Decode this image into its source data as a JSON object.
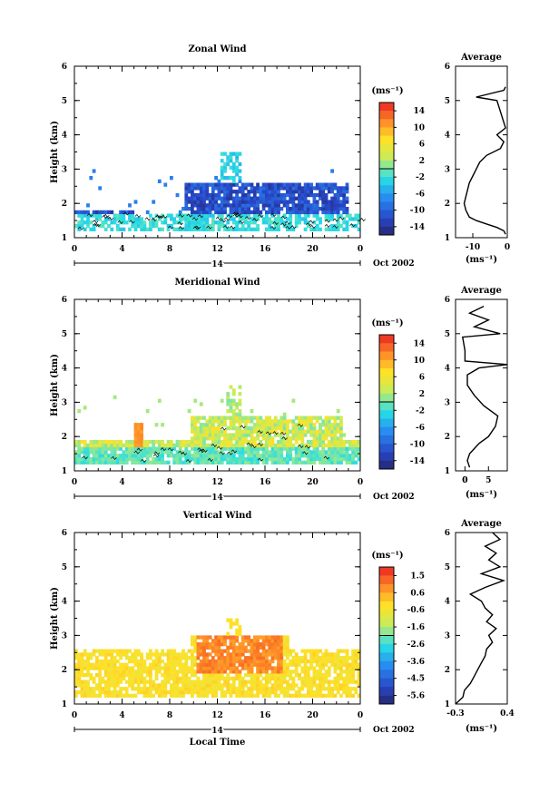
{
  "chart_data": [
    {
      "type": "heatmap",
      "title": "Zonal Wind",
      "ylabel": "Height (km)",
      "xlabel": "",
      "x_ticks": [
        "0",
        "4",
        "8",
        "12",
        "16",
        "20",
        "0"
      ],
      "y_ticks": [
        "1",
        "2",
        "3",
        "4",
        "5",
        "6"
      ],
      "xlim": [
        0,
        24
      ],
      "ylim": [
        1,
        6
      ],
      "date_day": "14",
      "date_month_year": "Oct 2002",
      "colorbar": {
        "unit": "(ms⁻¹)",
        "labels": [
          "14",
          "10",
          "6",
          "2",
          "-2",
          "-6",
          "-10",
          "-14"
        ],
        "range": [
          -16,
          16
        ]
      },
      "field_summary": "echoes between 1.2 and 2.6 km, strongest easterly (~-12 ms-1) near 2-2.4 km from 10-22 h",
      "average_profile": {
        "title": "Average",
        "unit": "(ms⁻¹)",
        "x_ticks": [
          "-10",
          "0"
        ],
        "xlim": [
          -15,
          0
        ],
        "height_km": [
          1.1,
          1.2,
          1.3,
          1.4,
          1.5,
          1.6,
          1.8,
          2.0,
          2.2,
          2.4,
          2.6,
          2.8,
          3.0,
          3.2,
          3.4,
          3.6,
          3.8,
          4.0,
          4.2,
          5.0,
          5.1,
          5.3,
          5.4
        ],
        "values": [
          -0.5,
          -1,
          -3,
          -6,
          -9,
          -11,
          -12,
          -12.5,
          -12,
          -11.5,
          -11,
          -10,
          -9,
          -8,
          -6,
          -2,
          -1,
          -3,
          -0.5,
          -3,
          -9,
          -1,
          -0.5
        ]
      }
    },
    {
      "type": "heatmap",
      "title": "Meridional Wind",
      "ylabel": "Height (km)",
      "xlabel": "",
      "x_ticks": [
        "0",
        "4",
        "8",
        "12",
        "16",
        "20",
        "0"
      ],
      "y_ticks": [
        "1",
        "2",
        "3",
        "4",
        "5",
        "6"
      ],
      "xlim": [
        0,
        24
      ],
      "ylim": [
        1,
        6
      ],
      "date_day": "14",
      "date_month_year": "Oct 2002",
      "colorbar": {
        "unit": "(ms⁻¹)",
        "labels": [
          "14",
          "10",
          "6",
          "2",
          "-2",
          "-6",
          "-10",
          "-14"
        ],
        "range": [
          -16,
          16
        ]
      },
      "field_summary": "weak southerly near ground, northerly up to ~6 ms-1 between 2 and 2.6 km from 10-19 h",
      "average_profile": {
        "title": "Average",
        "unit": "(ms⁻¹)",
        "x_ticks": [
          "0",
          "5"
        ],
        "xlim": [
          -2,
          9
        ],
        "height_km": [
          1.1,
          1.3,
          1.5,
          1.8,
          2.0,
          2.3,
          2.6,
          2.9,
          3.2,
          3.5,
          3.8,
          4.0,
          4.1,
          4.2,
          4.5,
          4.9,
          5.0,
          5.2,
          5.4,
          5.6,
          5.8
        ],
        "values": [
          1,
          0.5,
          1,
          3,
          5,
          6.5,
          7,
          4,
          2,
          0.5,
          0.5,
          3,
          9,
          0,
          0,
          -0.5,
          7.5,
          2,
          5,
          1,
          4
        ]
      }
    },
    {
      "type": "heatmap",
      "title": "Vertical Wind",
      "ylabel": "Height (km)",
      "xlabel": "Local Time",
      "x_ticks": [
        "0",
        "4",
        "8",
        "12",
        "16",
        "20",
        "0"
      ],
      "y_ticks": [
        "1",
        "2",
        "3",
        "4",
        "5",
        "6"
      ],
      "xlim": [
        0,
        24
      ],
      "ylim": [
        1,
        6
      ],
      "date_day": "14",
      "date_month_year": "Oct 2002",
      "colorbar": {
        "unit": "(ms⁻¹)",
        "labels": [
          "1.5",
          "0.6",
          "-0.6",
          "-1.6",
          "-2.6",
          "-3.6",
          "-4.5",
          "-5.6"
        ],
        "range": [
          -6.1,
          2.0
        ]
      },
      "field_summary": "mostly weak near zero, slightly positive (orange) around 2-2.8 km from 10-17 h",
      "average_profile": {
        "title": "Average",
        "unit": "(ms⁻¹)",
        "x_ticks": [
          "-0.3",
          "0.4"
        ],
        "xlim": [
          -0.3,
          0.4
        ],
        "height_km": [
          1.0,
          1.2,
          1.4,
          1.6,
          1.8,
          2.0,
          2.2,
          2.4,
          2.6,
          2.8,
          3.0,
          3.2,
          3.4,
          3.6,
          3.8,
          4.0,
          4.2,
          4.4,
          4.6,
          4.8,
          5.0,
          5.2,
          5.4,
          5.6,
          5.8,
          6.0
        ],
        "values": [
          -0.3,
          -0.2,
          -0.18,
          -0.1,
          -0.05,
          0.0,
          0.05,
          0.1,
          0.12,
          0.2,
          0.15,
          0.25,
          0.12,
          0.2,
          0.1,
          0.05,
          -0.1,
          0.1,
          0.35,
          0.05,
          0.3,
          0.15,
          0.25,
          0.1,
          0.3,
          0.2
        ]
      }
    }
  ]
}
